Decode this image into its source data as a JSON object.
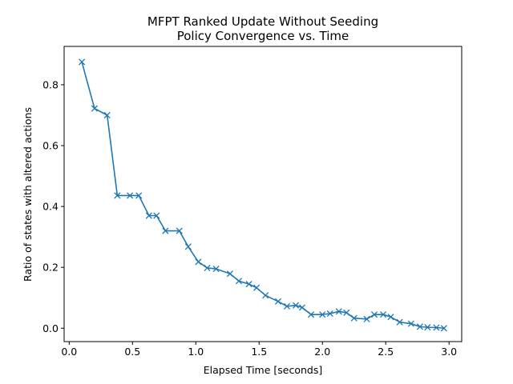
{
  "chart_data": {
    "type": "line",
    "title": "MFPT Ranked Update Without Seeding",
    "subtitle": "Policy Convergence vs. Time",
    "xlabel": "Elapsed Time [seconds]",
    "ylabel": "Ratio of states with altered actions",
    "xlim": [
      -0.04,
      3.1
    ],
    "ylim": [
      -0.044,
      0.926
    ],
    "xticks": [
      0.0,
      0.5,
      1.0,
      1.5,
      2.0,
      2.5,
      3.0
    ],
    "xtick_labels": [
      "0.0",
      "0.5",
      "1.0",
      "1.5",
      "2.0",
      "2.5",
      "3.0"
    ],
    "yticks": [
      0.0,
      0.2,
      0.4,
      0.6,
      0.8
    ],
    "ytick_labels": [
      "0.0",
      "0.2",
      "0.4",
      "0.6",
      "0.8"
    ],
    "grid": false,
    "marker": "x",
    "color": "#1f77b4",
    "series": [
      {
        "x": [
          0.1,
          0.2,
          0.3,
          0.38,
          0.48,
          0.55,
          0.63,
          0.69,
          0.76,
          0.87,
          0.94,
          1.02,
          1.09,
          1.16,
          1.27,
          1.34,
          1.42,
          1.48,
          1.55,
          1.65,
          1.72,
          1.79,
          1.84,
          1.91,
          2.0,
          2.06,
          2.13,
          2.19,
          2.25,
          2.35,
          2.41,
          2.48,
          2.54,
          2.61,
          2.7,
          2.77,
          2.83,
          2.9,
          2.96
        ],
        "values": [
          0.875,
          0.722,
          0.7,
          0.436,
          0.436,
          0.436,
          0.37,
          0.37,
          0.32,
          0.32,
          0.268,
          0.218,
          0.198,
          0.195,
          0.179,
          0.155,
          0.145,
          0.133,
          0.108,
          0.088,
          0.072,
          0.075,
          0.068,
          0.045,
          0.045,
          0.048,
          0.055,
          0.051,
          0.033,
          0.03,
          0.045,
          0.045,
          0.037,
          0.02,
          0.015,
          0.005,
          0.003,
          0.002,
          0.0
        ]
      }
    ]
  }
}
